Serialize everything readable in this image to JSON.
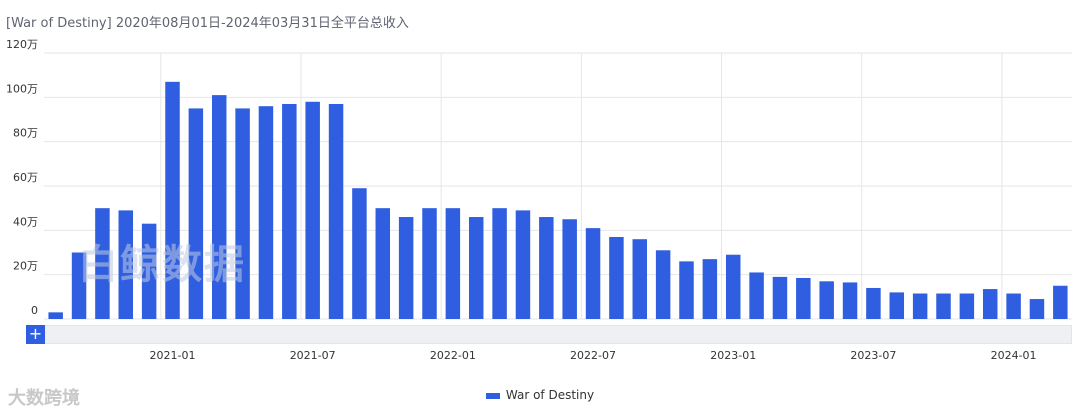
{
  "title": "[War of Destiny]  2020年08月01日-2024年03月31日全平台总收入",
  "colors": {
    "bar": "#2f5fe0",
    "grid": "#e6e6e6"
  },
  "chart_data": {
    "type": "bar",
    "categories": [
      "2020-08",
      "2020-09",
      "2020-10",
      "2020-11",
      "2020-12",
      "2021-01",
      "2021-02",
      "2021-03",
      "2021-04",
      "2021-05",
      "2021-06",
      "2021-07",
      "2021-08",
      "2021-09",
      "2021-10",
      "2021-11",
      "2021-12",
      "2022-01",
      "2022-02",
      "2022-03",
      "2022-04",
      "2022-05",
      "2022-06",
      "2022-07",
      "2022-08",
      "2022-09",
      "2022-10",
      "2022-11",
      "2022-12",
      "2023-01",
      "2023-02",
      "2023-03",
      "2023-04",
      "2023-05",
      "2023-06",
      "2023-07",
      "2023-08",
      "2023-09",
      "2023-10",
      "2023-11",
      "2023-12",
      "2024-01",
      "2024-02",
      "2024-03"
    ],
    "series": [
      {
        "name": "War of Destiny",
        "values": [
          3,
          30,
          50,
          49,
          43,
          107,
          95,
          101,
          95,
          96,
          97,
          98,
          97,
          59,
          50,
          46,
          50,
          50,
          46,
          50,
          49,
          46,
          45,
          41,
          37,
          36,
          31,
          26,
          27,
          29,
          21,
          19,
          18.5,
          17,
          16.5,
          14,
          12,
          11.5,
          11.5,
          11.5,
          13.5,
          11.5,
          9,
          15
        ]
      }
    ],
    "x_tick_labels": [
      "2021-01",
      "2021-07",
      "2022-01",
      "2022-07",
      "2023-01",
      "2023-07",
      "2024-01"
    ],
    "y_tick_labels": [
      "0",
      "20万",
      "40万",
      "60万",
      "80万",
      "100万",
      "120万"
    ],
    "y_ticks": [
      0,
      20,
      40,
      60,
      80,
      100,
      120
    ],
    "ylim": [
      0,
      120
    ],
    "grid": true,
    "legend_position": "bottom-center"
  },
  "zoom_button": "+",
  "legend_label": "War of Destiny",
  "watermark": "白鲸数据",
  "logo_text": "大数跨境"
}
